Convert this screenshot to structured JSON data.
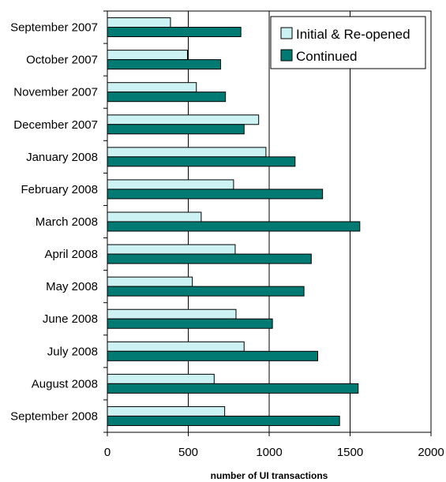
{
  "chart_data": {
    "type": "bar",
    "orientation": "horizontal",
    "categories": [
      "September 2007",
      "October 2007",
      "November 2007",
      "December 2007",
      "January 2008",
      "February 2008",
      "March 2008",
      "April 2008",
      "May 2008",
      "June 2008",
      "July 2008",
      "August 2008",
      "September 2008"
    ],
    "series": [
      {
        "name": "Initial & Re-opened",
        "color": "#ccf2f4",
        "values": [
          390,
          495,
          550,
          935,
          980,
          780,
          580,
          790,
          525,
          795,
          845,
          660,
          725
        ]
      },
      {
        "name": "Continued",
        "color": "#007a72",
        "values": [
          825,
          700,
          730,
          845,
          1160,
          1330,
          1560,
          1260,
          1215,
          1020,
          1300,
          1550,
          1435
        ]
      }
    ],
    "xlabel": "number of UI transactions",
    "ylabel": "",
    "title": "",
    "xlim": [
      0,
      2000
    ],
    "xticks": [
      "0",
      "500",
      "1000",
      "1500",
      "2000"
    ],
    "grid": "vertical",
    "legend_position": "top-right"
  }
}
